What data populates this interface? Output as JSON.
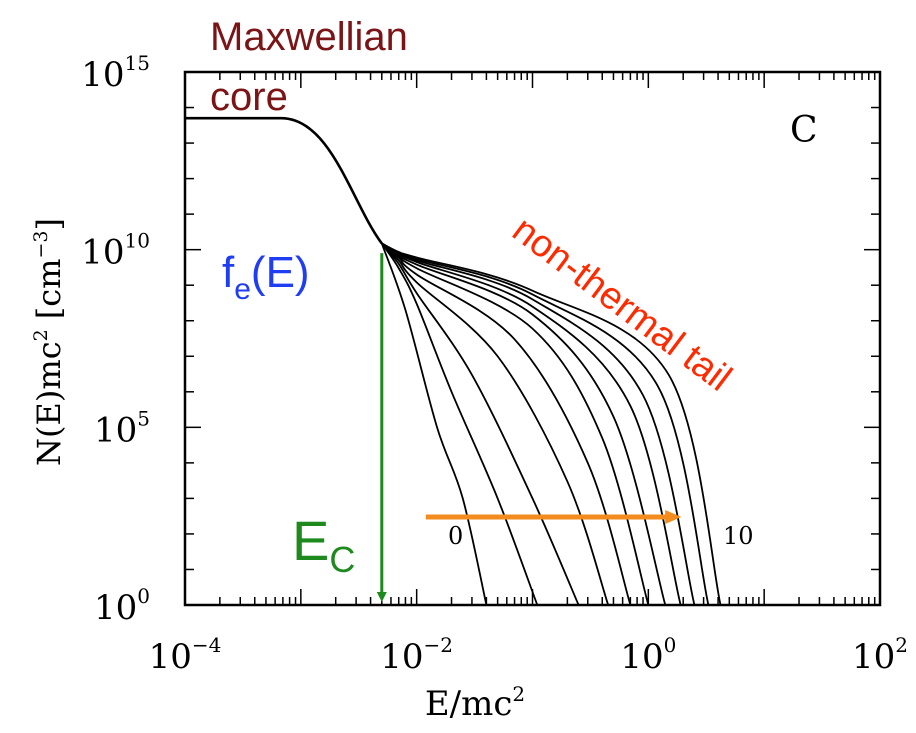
{
  "chart_data": {
    "type": "line",
    "xlabel_main": "E/mc",
    "xlabel_sup": "2",
    "ylabel_main": "N(E)mc",
    "ylabel_sup": "2",
    "ylabel_unit": "[cm",
    "ylabel_unit_sup": "−3",
    "ylabel_close": "]",
    "x_scale": "log",
    "y_scale": "log",
    "xlim": [
      0.0001,
      100
    ],
    "ylim": [
      1,
      1000000000000000
    ],
    "x_ticks": [
      {
        "value": 0.0001,
        "base": "10",
        "exp": "−4"
      },
      {
        "value": 0.01,
        "base": "10",
        "exp": "−2"
      },
      {
        "value": 1,
        "base": "10",
        "exp": "0"
      },
      {
        "value": 100,
        "base": "10",
        "exp": "2"
      }
    ],
    "y_ticks": [
      {
        "value": 1,
        "base": "10",
        "exp": "0"
      },
      {
        "value": 100000,
        "base": "10",
        "exp": "5"
      },
      {
        "value": 10000000000,
        "base": "10",
        "exp": "10"
      },
      {
        "value": 1000000000000000,
        "base": "10",
        "exp": "15"
      }
    ],
    "panel_label": "C",
    "curve_label_first": "0",
    "curve_label_last": "10",
    "core": {
      "plateau": 50000000000000,
      "knee_E": 0.0015,
      "core_E": 0.005,
      "core_N": 15000000000
    },
    "series": [
      {
        "label": "0",
        "points": [
          [
            0.005,
            15000000000
          ],
          [
            0.008,
            200000000
          ],
          [
            0.015,
            100000
          ],
          [
            0.025,
            1000
          ],
          [
            0.04,
            1
          ]
        ]
      },
      {
        "points": [
          [
            0.005,
            15000000000
          ],
          [
            0.007,
            3000000000
          ],
          [
            0.01,
            300000000
          ],
          [
            0.02,
            1000000
          ],
          [
            0.05,
            1000
          ],
          [
            0.11,
            1
          ]
        ]
      },
      {
        "points": [
          [
            0.005,
            15000000000
          ],
          [
            0.007,
            4000000000
          ],
          [
            0.01,
            600000000
          ],
          [
            0.03,
            3000000
          ],
          [
            0.1,
            1000
          ],
          [
            0.25,
            1
          ]
        ]
      },
      {
        "points": [
          [
            0.005,
            15000000000
          ],
          [
            0.007,
            5000000000
          ],
          [
            0.01,
            1200000000
          ],
          [
            0.05,
            10000000
          ],
          [
            0.2,
            3000
          ],
          [
            0.45,
            1
          ]
        ]
      },
      {
        "points": [
          [
            0.005,
            15000000000
          ],
          [
            0.007,
            6000000000
          ],
          [
            0.01,
            2000000000
          ],
          [
            0.07,
            30000000
          ],
          [
            0.3,
            10000
          ],
          [
            0.7,
            1
          ]
        ]
      },
      {
        "points": [
          [
            0.005,
            15000000000
          ],
          [
            0.007,
            6500000000
          ],
          [
            0.01,
            3000000000
          ],
          [
            0.1,
            60000000
          ],
          [
            0.4,
            50000
          ],
          [
            1,
            1
          ]
        ]
      },
      {
        "points": [
          [
            0.005,
            15000000000
          ],
          [
            0.007,
            7000000000
          ],
          [
            0.01,
            3800000000
          ],
          [
            0.1,
            150000000
          ],
          [
            0.5,
            200000
          ],
          [
            1.4,
            1
          ]
        ]
      },
      {
        "points": [
          [
            0.005,
            15000000000
          ],
          [
            0.007,
            7500000000
          ],
          [
            0.01,
            4500000000
          ],
          [
            0.1,
            250000000
          ],
          [
            0.7,
            400000
          ],
          [
            1.9,
            1
          ]
        ]
      },
      {
        "points": [
          [
            0.005,
            15000000000
          ],
          [
            0.007,
            8000000000
          ],
          [
            0.01,
            5000000000
          ],
          [
            0.1,
            400000000
          ],
          [
            0.9,
            800000
          ],
          [
            2.5,
            1
          ]
        ]
      },
      {
        "points": [
          [
            0.005,
            15000000000
          ],
          [
            0.007,
            8300000000
          ],
          [
            0.01,
            5500000000
          ],
          [
            0.1,
            550000000
          ],
          [
            1.2,
            1500000
          ],
          [
            3.3,
            1
          ]
        ]
      },
      {
        "label": "10",
        "points": [
          [
            0.005,
            15000000000
          ],
          [
            0.007,
            8600000000
          ],
          [
            0.01,
            6000000000
          ],
          [
            0.1,
            700000000
          ],
          [
            1.5,
            3000000
          ],
          [
            4.2,
            1
          ]
        ]
      }
    ]
  },
  "annotations": {
    "maxwellian_line1": "Maxwellian",
    "maxwellian_line2": "core",
    "fe_main": "f",
    "fe_sub": "e",
    "fe_rest": "(E)",
    "nonthermal": "non-thermal tail",
    "ec_main": "E",
    "ec_sub": "C",
    "colors": {
      "maxwellian": "#7b1416",
      "fe": "#1f3df2",
      "nonthermal": "#ff2a00",
      "ec": "#1e8a1e",
      "green_arrow": "#1e8a1e",
      "orange_arrow": "#f28c1e"
    },
    "green_arrow": {
      "E": 0.005,
      "N_top": 8000000000,
      "N_bottom": 1
    },
    "orange_arrow": {
      "E_start": 0.012,
      "E_end": 2.0,
      "N": 300
    }
  }
}
